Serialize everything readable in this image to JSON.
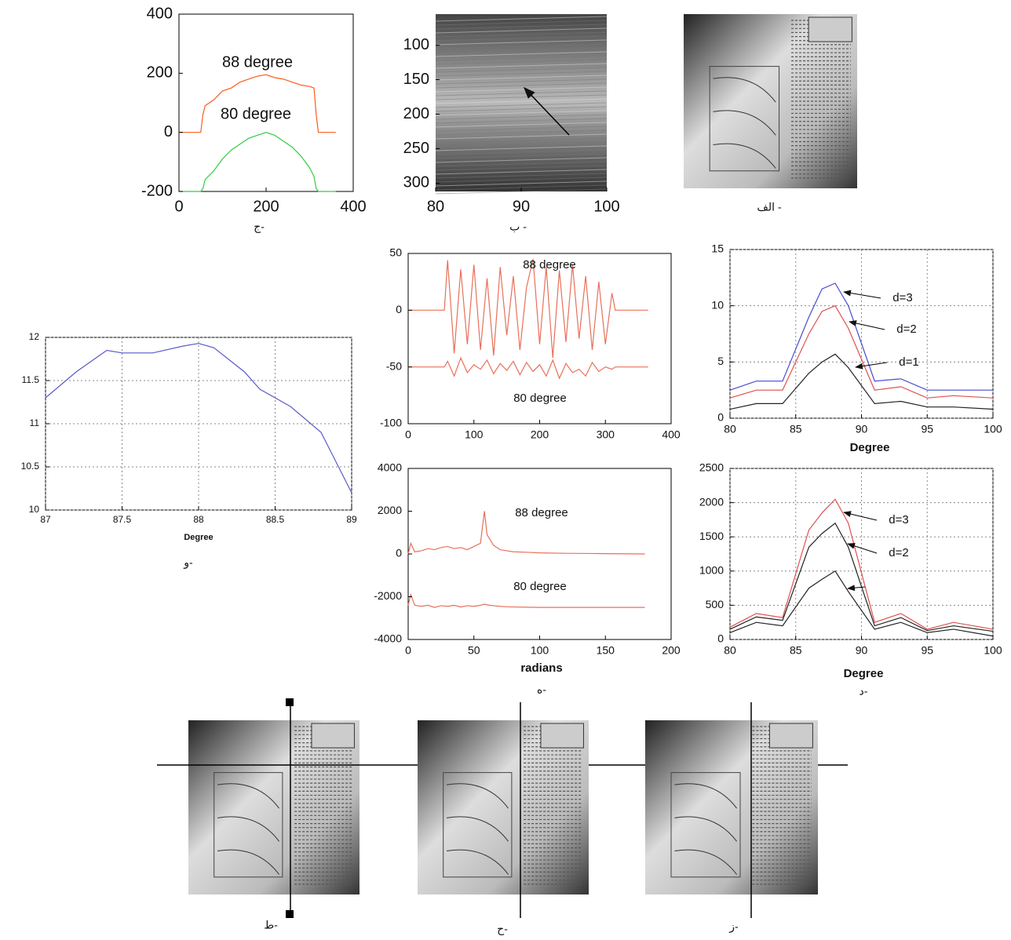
{
  "chart_data": [
    {
      "type": "line",
      "caption": "ج-",
      "xlim": [
        0,
        400
      ],
      "xticks": [
        0,
        200,
        400
      ],
      "ylim": [
        -200,
        400
      ],
      "yticks": [
        -200,
        0,
        200,
        400
      ],
      "grid": false,
      "x": [
        0,
        50,
        55,
        60,
        80,
        100,
        120,
        140,
        160,
        180,
        200,
        220,
        240,
        260,
        280,
        300,
        310,
        315,
        320,
        360
      ],
      "series": [
        {
          "name": "88 degree",
          "color": "#ff5a1e",
          "values": [
            0,
            0,
            60,
            90,
            110,
            140,
            150,
            170,
            180,
            190,
            195,
            185,
            180,
            170,
            160,
            155,
            150,
            60,
            0,
            0
          ]
        },
        {
          "name": "80 degree",
          "color": "#33cc44",
          "values": [
            -200,
            -200,
            -190,
            -160,
            -130,
            -90,
            -60,
            -40,
            -20,
            -10,
            0,
            -10,
            -30,
            -50,
            -80,
            -120,
            -150,
            -190,
            -200,
            -200
          ]
        }
      ]
    },
    {
      "type": "image",
      "caption": "ب -",
      "xlim": [
        80,
        100
      ],
      "xticks": [
        80,
        90,
        100
      ],
      "ylim": [
        312,
        55
      ],
      "yticks": [
        100,
        150,
        200,
        250,
        300
      ]
    },
    {
      "type": "image",
      "caption": "الف -"
    },
    {
      "type": "line",
      "caption": "و-",
      "xlabel": "Degree",
      "xlim": [
        87,
        89
      ],
      "xticks": [
        87,
        87.5,
        88,
        88.5,
        89
      ],
      "ylim": [
        10,
        12
      ],
      "yticks": [
        10,
        10.5,
        11,
        11.5,
        12
      ],
      "grid": true,
      "x": [
        87,
        87.2,
        87.4,
        87.5,
        87.7,
        87.9,
        88,
        88.1,
        88.3,
        88.4,
        88.6,
        88.8,
        89
      ],
      "series": [
        {
          "color": "#5a5ac8",
          "values": [
            11.3,
            11.6,
            11.85,
            11.82,
            11.82,
            11.9,
            11.93,
            11.88,
            11.6,
            11.4,
            11.2,
            10.9,
            10.2
          ]
        }
      ]
    },
    {
      "type": "line",
      "xlim": [
        0,
        400
      ],
      "xticks": [
        0,
        100,
        200,
        300,
        400
      ],
      "ylim": [
        -100,
        50
      ],
      "yticks": [
        -100,
        -50,
        0,
        50
      ],
      "grid": false,
      "x": [
        0,
        55,
        60,
        70,
        80,
        90,
        100,
        110,
        120,
        130,
        140,
        150,
        160,
        170,
        180,
        190,
        200,
        210,
        220,
        230,
        240,
        250,
        260,
        270,
        280,
        290,
        300,
        310,
        315,
        365
      ],
      "series": [
        {
          "name": "88 degree",
          "color": "#e8705a",
          "values": [
            0,
            0,
            44,
            -38,
            36,
            -30,
            40,
            -35,
            28,
            -40,
            38,
            -22,
            30,
            -35,
            20,
            45,
            -30,
            38,
            -42,
            35,
            -28,
            40,
            -25,
            30,
            -35,
            25,
            -30,
            15,
            0,
            0
          ]
        },
        {
          "name": "80 degree",
          "color": "#e8705a",
          "values": [
            -50,
            -50,
            -45,
            -58,
            -42,
            -55,
            -48,
            -52,
            -44,
            -56,
            -47,
            -53,
            -45,
            -57,
            -46,
            -54,
            -48,
            -58,
            -44,
            -60,
            -47,
            -55,
            -52,
            -58,
            -46,
            -54,
            -50,
            -52,
            -50,
            -50
          ]
        }
      ]
    },
    {
      "type": "line",
      "caption": "ه-",
      "xlabel": "radians",
      "xlim": [
        0,
        200
      ],
      "xticks": [
        0,
        50,
        100,
        150,
        200
      ],
      "ylim": [
        -4000,
        4000
      ],
      "yticks": [
        -4000,
        -2000,
        0,
        2000,
        4000
      ],
      "grid": false,
      "x": [
        0,
        2,
        5,
        10,
        15,
        20,
        25,
        30,
        35,
        40,
        45,
        50,
        55,
        58,
        60,
        62,
        65,
        70,
        75,
        80,
        90,
        100,
        120,
        140,
        160,
        180
      ],
      "series": [
        {
          "name": "88 degree",
          "color": "#e8705a",
          "values": [
            0,
            500,
            100,
            150,
            250,
            200,
            300,
            350,
            250,
            300,
            200,
            350,
            500,
            2000,
            900,
            700,
            400,
            200,
            150,
            100,
            80,
            50,
            30,
            20,
            10,
            0
          ]
        },
        {
          "name": "80 degree",
          "color": "#e8705a",
          "values": [
            -2400,
            -1900,
            -2400,
            -2450,
            -2400,
            -2500,
            -2420,
            -2450,
            -2400,
            -2480,
            -2420,
            -2450,
            -2400,
            -2350,
            -2380,
            -2400,
            -2420,
            -2450,
            -2470,
            -2480,
            -2490,
            -2500,
            -2500,
            -2500,
            -2500,
            -2500
          ]
        }
      ]
    },
    {
      "type": "line",
      "xlabel": "Degree",
      "xlim": [
        80,
        100
      ],
      "xticks": [
        80,
        85,
        90,
        95,
        100
      ],
      "ylim": [
        0,
        15
      ],
      "yticks": [
        0,
        5,
        10,
        15
      ],
      "grid": true,
      "x": [
        80,
        82,
        84,
        86,
        87,
        88,
        89,
        91,
        93,
        95,
        97,
        100
      ],
      "series": [
        {
          "name": "d=3",
          "color": "#4a4ad0",
          "values": [
            2.5,
            3.3,
            3.3,
            9,
            11.5,
            12,
            10,
            3.3,
            3.5,
            2.5,
            2.5,
            2.5
          ]
        },
        {
          "name": "d=2",
          "color": "#e05050",
          "values": [
            1.8,
            2.5,
            2.5,
            7.5,
            9.5,
            10,
            8,
            2.5,
            2.8,
            1.8,
            2,
            1.8
          ]
        },
        {
          "name": "d=1",
          "color": "#222222",
          "values": [
            0.8,
            1.3,
            1.3,
            4,
            5,
            5.7,
            4.5,
            1.3,
            1.5,
            1,
            1,
            0.8
          ]
        }
      ]
    },
    {
      "type": "line",
      "caption": "د-",
      "xlabel": "Degree",
      "xlim": [
        80,
        100
      ],
      "xticks": [
        80,
        85,
        90,
        95,
        100
      ],
      "ylim": [
        0,
        2500
      ],
      "yticks": [
        0,
        500,
        1000,
        1500,
        2000,
        2500
      ],
      "grid": true,
      "x": [
        80,
        82,
        84,
        86,
        87,
        88,
        89,
        91,
        93,
        95,
        97,
        100
      ],
      "series": [
        {
          "name": "d=3",
          "color": "#e05050",
          "values": [
            180,
            380,
            320,
            1600,
            1850,
            2050,
            1700,
            250,
            380,
            150,
            250,
            150
          ]
        },
        {
          "name": "d=2",
          "color": "#222222",
          "values": [
            150,
            330,
            280,
            1350,
            1550,
            1700,
            1350,
            200,
            320,
            130,
            200,
            120
          ]
        },
        {
          "color": "#222222",
          "values": [
            100,
            250,
            200,
            750,
            880,
            1000,
            700,
            150,
            250,
            100,
            150,
            50
          ]
        }
      ]
    },
    {
      "type": "image",
      "caption": "ط-"
    },
    {
      "type": "image",
      "caption": "ح-"
    },
    {
      "type": "image",
      "caption": "ز-"
    }
  ]
}
